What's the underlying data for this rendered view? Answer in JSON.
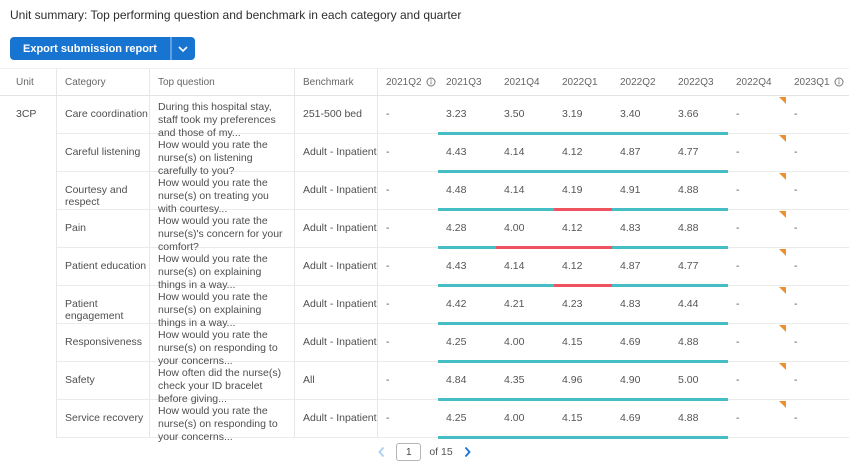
{
  "page": {
    "title": "Unit summary: Top performing question and benchmark in each category and quarter"
  },
  "toolbar": {
    "export_label": "Export submission report"
  },
  "table": {
    "headers": {
      "unit": "Unit",
      "category": "Category",
      "top_question": "Top question",
      "benchmark": "Benchmark"
    },
    "quarter_columns": [
      {
        "label": "2021Q2",
        "info": true
      },
      {
        "label": "2021Q3",
        "info": false
      },
      {
        "label": "2021Q4",
        "info": false
      },
      {
        "label": "2022Q1",
        "info": false
      },
      {
        "label": "2022Q2",
        "info": false
      },
      {
        "label": "2022Q3",
        "info": false
      },
      {
        "label": "2022Q4",
        "info": false
      },
      {
        "label": "2023Q1",
        "info": true
      }
    ],
    "unit_value": "3CP",
    "rows": [
      {
        "category": "Care coordination",
        "question": "During this hospital stay, staff took my preferences and those of my...",
        "benchmark": "251-500 bed",
        "values": [
          "-",
          "3.23",
          "3.50",
          "3.19",
          "3.40",
          "3.66",
          "-",
          "-"
        ],
        "bar_segments": [
          "teal",
          "teal",
          "teal",
          "teal",
          "teal"
        ],
        "flag": true
      },
      {
        "category": "Careful listening",
        "question": "How would you rate the nurse(s) on listening carefully to you?",
        "benchmark": "Adult - Inpatient",
        "values": [
          "-",
          "4.43",
          "4.14",
          "4.12",
          "4.87",
          "4.77",
          "-",
          "-"
        ],
        "bar_segments": [
          "teal",
          "teal",
          "teal",
          "teal",
          "teal"
        ],
        "flag": true
      },
      {
        "category": "Courtesy and respect",
        "question": "How would you rate the nurse(s) on treating you with courtesy...",
        "benchmark": "Adult - Inpatient",
        "values": [
          "-",
          "4.48",
          "4.14",
          "4.19",
          "4.91",
          "4.88",
          "-",
          "-"
        ],
        "bar_segments": [
          "teal",
          "teal",
          "red",
          "teal",
          "teal"
        ],
        "flag": true
      },
      {
        "category": "Pain",
        "question": "How would you rate the nurse(s)'s concern for your comfort?",
        "benchmark": "Adult - Inpatient",
        "values": [
          "-",
          "4.28",
          "4.00",
          "4.12",
          "4.83",
          "4.88",
          "-",
          "-"
        ],
        "bar_segments": [
          "teal",
          "red",
          "red",
          "teal",
          "teal"
        ],
        "flag": true
      },
      {
        "category": "Patient education",
        "question": "How would you rate the nurse(s) on explaining things in a way...",
        "benchmark": "Adult - Inpatient",
        "values": [
          "-",
          "4.43",
          "4.14",
          "4.12",
          "4.87",
          "4.77",
          "-",
          "-"
        ],
        "bar_segments": [
          "teal",
          "teal",
          "red",
          "teal",
          "teal"
        ],
        "flag": true
      },
      {
        "category": "Patient engagement",
        "question": "How would you rate the nurse(s) on explaining things in a way...",
        "benchmark": "Adult - Inpatient",
        "values": [
          "-",
          "4.42",
          "4.21",
          "4.23",
          "4.83",
          "4.44",
          "-",
          "-"
        ],
        "bar_segments": [
          "teal",
          "teal",
          "teal",
          "teal",
          "teal"
        ],
        "flag": true
      },
      {
        "category": "Responsiveness",
        "question": "How would you rate the nurse(s) on responding to your concerns...",
        "benchmark": "Adult - Inpatient",
        "values": [
          "-",
          "4.25",
          "4.00",
          "4.15",
          "4.69",
          "4.88",
          "-",
          "-"
        ],
        "bar_segments": [
          "teal",
          "teal",
          "teal",
          "teal",
          "teal"
        ],
        "flag": true
      },
      {
        "category": "Safety",
        "question": "How often did the nurse(s) check your ID bracelet before giving...",
        "benchmark": "All",
        "values": [
          "-",
          "4.84",
          "4.35",
          "4.96",
          "4.90",
          "5.00",
          "-",
          "-"
        ],
        "bar_segments": [
          "teal",
          "teal",
          "teal",
          "teal",
          "teal"
        ],
        "flag": true
      },
      {
        "category": "Service recovery",
        "question": "How would you rate the nurse(s) on responding to your concerns...",
        "benchmark": "Adult - Inpatient",
        "values": [
          "-",
          "4.25",
          "4.00",
          "4.15",
          "4.69",
          "4.88",
          "-",
          "-"
        ],
        "bar_segments": [
          "teal",
          "teal",
          "teal",
          "teal",
          "teal"
        ],
        "flag": true
      }
    ]
  },
  "pagination": {
    "page": "1",
    "of_label": "of 15"
  },
  "colors": {
    "teal": "#45BEC6",
    "red": "#EF5360",
    "orange": "#EE8F2E",
    "accent_blue": "#1774D1"
  }
}
